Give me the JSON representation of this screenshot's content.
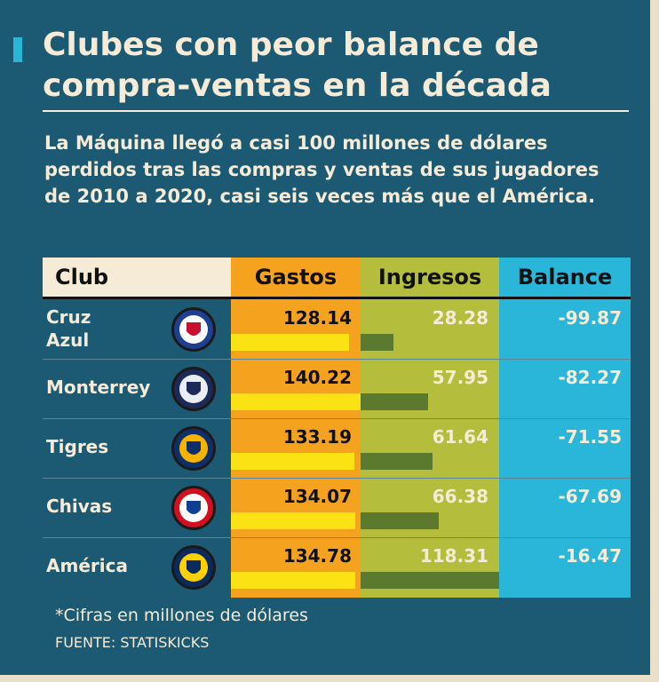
{
  "header": {
    "title": "Clubes con peor balance de compra-ventas en la década",
    "subtitle": "La Máquina llegó a casi 100 millones de dólares perdidos tras las compras y ventas de sus jugadores de 2010 a 2020, casi seis veces más que el América."
  },
  "chart_data": {
    "type": "table",
    "columns": [
      "Club",
      "Gastos",
      "Ingresos",
      "Balance"
    ],
    "categories": [
      "Cruz Azul",
      "Monterrey",
      "Tigres",
      "Chivas",
      "América"
    ],
    "series": [
      {
        "name": "Gastos",
        "values": [
          128.14,
          140.22,
          133.19,
          134.07,
          134.78
        ]
      },
      {
        "name": "Ingresos",
        "values": [
          28.28,
          57.95,
          61.64,
          66.38,
          118.31
        ]
      },
      {
        "name": "Balance",
        "values": [
          -99.87,
          -82.27,
          -71.55,
          -67.69,
          -16.47
        ]
      }
    ],
    "rows": [
      {
        "club": "Cruz Azul",
        "gastos": "128.14",
        "ingresos": "28.28",
        "balance": "-99.87"
      },
      {
        "club": "Monterrey",
        "gastos": "140.22",
        "ingresos": "57.95",
        "balance": "-82.27"
      },
      {
        "club": "Tigres",
        "gastos": "133.19",
        "ingresos": "61.64",
        "balance": "-71.55"
      },
      {
        "club": "Chivas",
        "gastos": "134.07",
        "ingresos": "66.38",
        "balance": "-67.69"
      },
      {
        "club": "América",
        "gastos": "134.78",
        "ingresos": "118.31",
        "balance": "-16.47"
      }
    ],
    "colors": {
      "gastos_bg": "#f5a31e",
      "gastos_bar": "#fbe214",
      "ingresos_bg": "#b5bd3c",
      "ingresos_bar": "#5b7a2e",
      "balance_bg": "#29b6d8",
      "panel": "#1c5a74",
      "cream": "#f6ebd6"
    }
  },
  "footer": {
    "note": "*Cifras en millones de dólares",
    "source": "FUENTE: STATISKICKS"
  }
}
